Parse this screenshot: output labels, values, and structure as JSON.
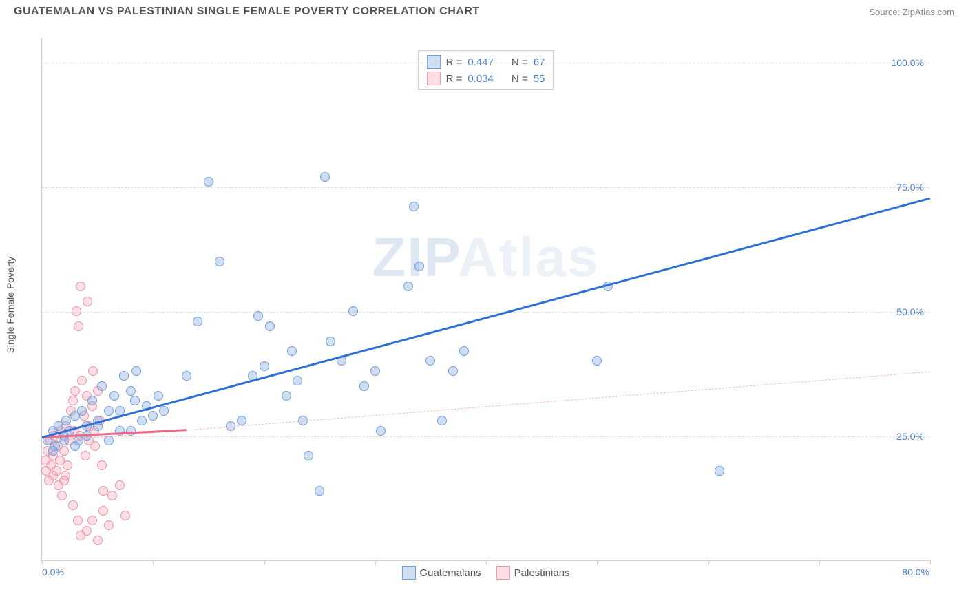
{
  "title": "GUATEMALAN VS PALESTINIAN SINGLE FEMALE POVERTY CORRELATION CHART",
  "source_label": "Source: ZipAtlas.com",
  "y_axis_label": "Single Female Poverty",
  "watermark_a": "ZIP",
  "watermark_b": "Atlas",
  "x_range": [
    0,
    80
  ],
  "y_range": [
    0,
    105
  ],
  "y_gridlines": [
    25,
    50,
    75,
    100
  ],
  "y_tick_labels": [
    "25.0%",
    "50.0%",
    "75.0%",
    "100.0%"
  ],
  "x_ticks": [
    0,
    10,
    20,
    30,
    40,
    50,
    60,
    70,
    80
  ],
  "x_tick_labels": {
    "left": "0.0%",
    "right": "80.0%"
  },
  "series_a": {
    "name": "Guatemalans",
    "fill": "rgba(120,160,220,0.35)",
    "stroke": "#6f9edb",
    "line_color": "#2e6fd6",
    "R": "0.447",
    "N": "67",
    "trend": {
      "x1": 0,
      "y1": 25,
      "x2": 80,
      "y2": 73,
      "style": "solid"
    },
    "trend_dash": {
      "x1": 0,
      "y1": 24,
      "x2": 80,
      "y2": 38,
      "color": "#f7b7c3"
    },
    "points": [
      [
        0.5,
        24
      ],
      [
        1,
        26
      ],
      [
        1.2,
        23
      ],
      [
        1.5,
        27
      ],
      [
        2,
        25
      ],
      [
        2.2,
        28
      ],
      [
        2.5,
        26
      ],
      [
        3,
        29
      ],
      [
        3.3,
        24
      ],
      [
        3.6,
        30
      ],
      [
        4,
        27
      ],
      [
        4.5,
        32
      ],
      [
        5,
        28
      ],
      [
        5.4,
        35
      ],
      [
        6,
        30
      ],
      [
        6.5,
        33
      ],
      [
        7,
        26
      ],
      [
        7.4,
        37
      ],
      [
        8,
        34
      ],
      [
        8.5,
        38
      ],
      [
        13,
        37
      ],
      [
        14,
        48
      ],
      [
        15,
        76
      ],
      [
        16,
        60
      ],
      [
        17,
        27
      ],
      [
        18,
        28
      ],
      [
        19,
        37
      ],
      [
        19.5,
        49
      ],
      [
        20,
        39
      ],
      [
        20.5,
        47
      ],
      [
        22,
        33
      ],
      [
        22.5,
        42
      ],
      [
        23,
        36
      ],
      [
        23.5,
        28
      ],
      [
        24,
        21
      ],
      [
        25,
        14
      ],
      [
        25.5,
        77
      ],
      [
        26,
        44
      ],
      [
        27,
        40
      ],
      [
        28,
        50
      ],
      [
        29,
        35
      ],
      [
        30,
        38
      ],
      [
        30.5,
        26
      ],
      [
        33,
        55
      ],
      [
        33.5,
        71
      ],
      [
        34,
        59
      ],
      [
        35,
        40
      ],
      [
        36,
        28
      ],
      [
        37,
        38
      ],
      [
        38,
        42
      ],
      [
        50,
        40
      ],
      [
        51,
        55
      ],
      [
        61,
        18
      ],
      [
        1,
        22
      ],
      [
        2,
        24
      ],
      [
        3,
        23
      ],
      [
        4,
        25
      ],
      [
        5,
        27
      ],
      [
        6,
        24
      ],
      [
        7,
        30
      ],
      [
        8,
        26
      ],
      [
        8.4,
        32
      ],
      [
        9,
        28
      ],
      [
        9.4,
        31
      ],
      [
        10,
        29
      ],
      [
        10.5,
        33
      ],
      [
        11,
        30
      ]
    ]
  },
  "series_b": {
    "name": "Palestinians",
    "fill": "rgba(245,160,180,0.35)",
    "stroke": "#ec93a7",
    "line_color": "#ec6a88",
    "R": "0.034",
    "N": "55",
    "trend": {
      "x1": 0,
      "y1": 25,
      "x2": 13,
      "y2": 26.5,
      "style": "solid"
    },
    "points": [
      [
        0.3,
        20
      ],
      [
        0.5,
        22
      ],
      [
        0.7,
        24
      ],
      [
        0.8,
        19
      ],
      [
        1,
        21
      ],
      [
        1.1,
        25
      ],
      [
        1.3,
        18
      ],
      [
        1.4,
        23
      ],
      [
        1.6,
        20
      ],
      [
        1.7,
        26
      ],
      [
        2,
        22
      ],
      [
        2.1,
        17
      ],
      [
        2.3,
        19
      ],
      [
        2.5,
        24
      ],
      [
        2.6,
        30
      ],
      [
        2.8,
        32
      ],
      [
        3,
        34
      ],
      [
        3.1,
        50
      ],
      [
        3.3,
        47
      ],
      [
        3.5,
        55
      ],
      [
        3.6,
        36
      ],
      [
        3.8,
        29
      ],
      [
        4,
        33
      ],
      [
        4.1,
        52
      ],
      [
        4.3,
        27
      ],
      [
        4.5,
        31
      ],
      [
        4.6,
        38
      ],
      [
        5,
        34
      ],
      [
        5.2,
        28
      ],
      [
        5.5,
        14
      ],
      [
        3.2,
        8
      ],
      [
        3.5,
        5
      ],
      [
        4,
        6
      ],
      [
        4.5,
        8
      ],
      [
        5,
        4
      ],
      [
        5.5,
        10
      ],
      [
        6,
        7
      ],
      [
        6.3,
        13
      ],
      [
        7,
        15
      ],
      [
        7.5,
        9
      ],
      [
        2.8,
        11
      ],
      [
        1.5,
        15
      ],
      [
        1.8,
        13
      ],
      [
        2,
        16
      ],
      [
        1,
        17
      ],
      [
        0.6,
        16
      ],
      [
        0.4,
        18
      ],
      [
        3.9,
        21
      ],
      [
        4.8,
        23
      ],
      [
        5.4,
        19
      ],
      [
        2.2,
        27
      ],
      [
        2.9,
        26
      ],
      [
        3.4,
        25
      ],
      [
        4.2,
        24
      ],
      [
        4.7,
        26
      ]
    ]
  },
  "legend_labels": {
    "R": "R =",
    "N": "N ="
  }
}
